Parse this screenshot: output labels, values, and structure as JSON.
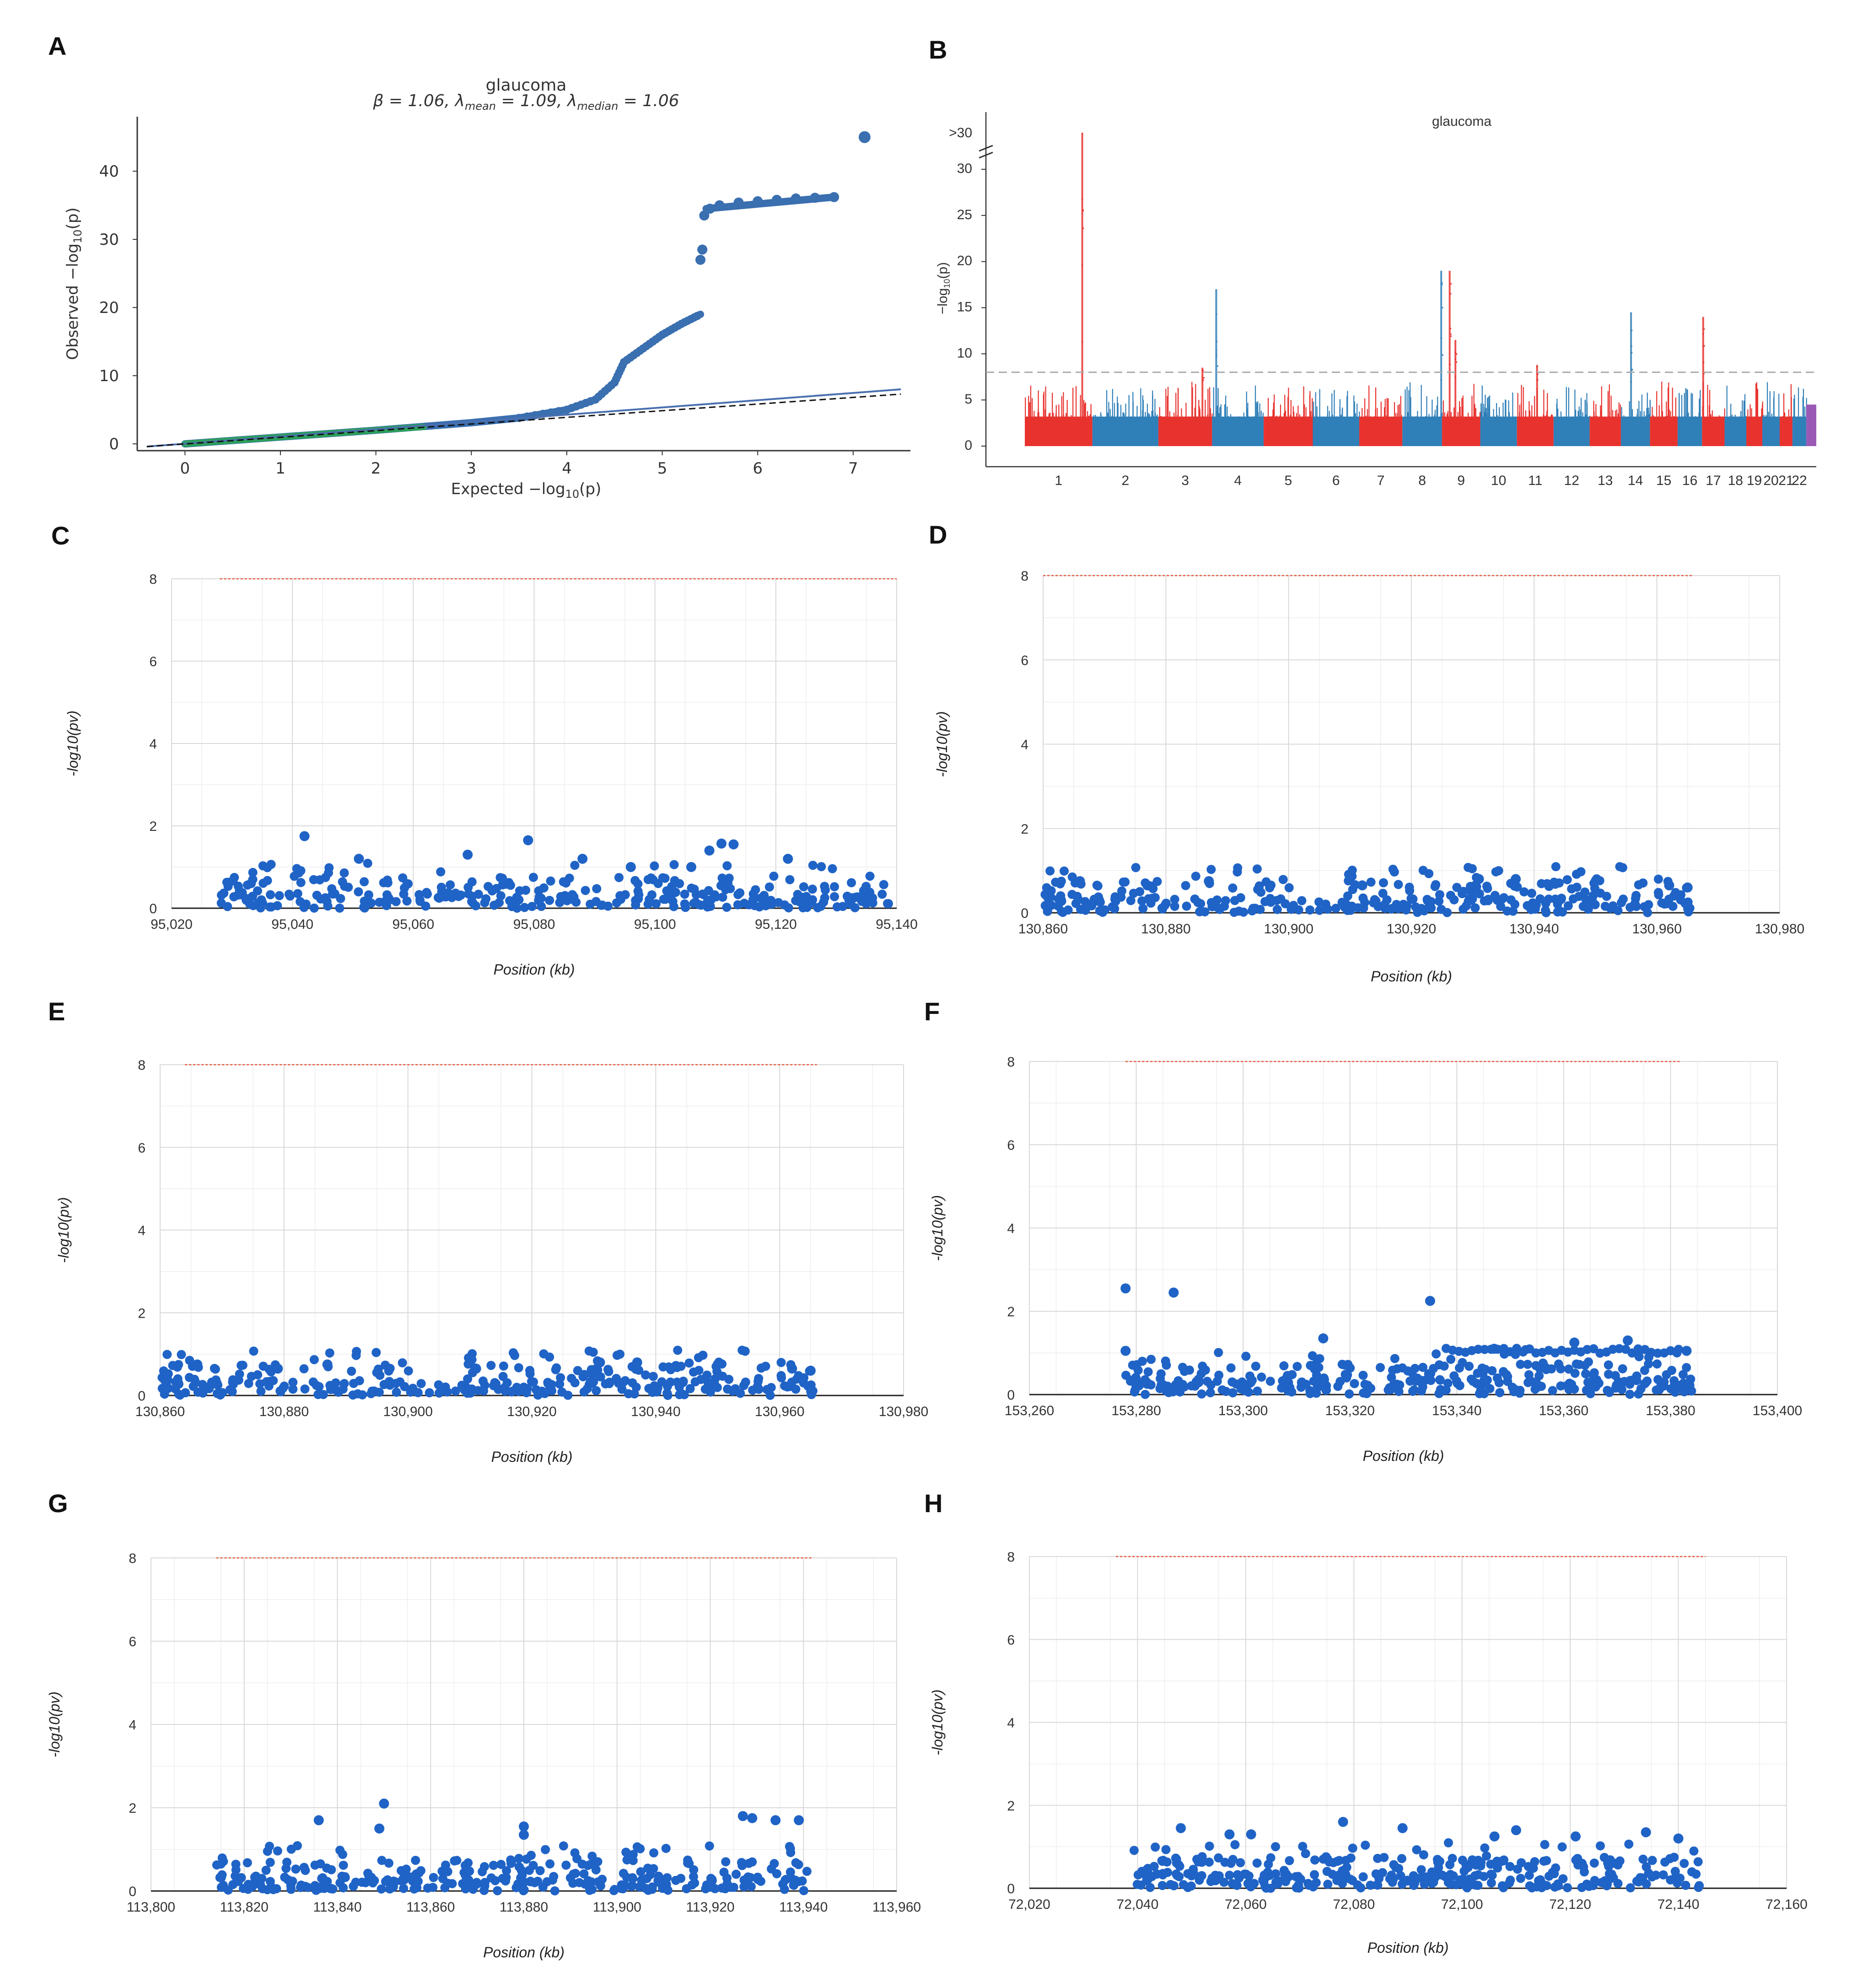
{
  "figure": {
    "panel_labels": [
      "A",
      "B",
      "C",
      "D",
      "E",
      "F",
      "G",
      "H"
    ]
  },
  "chart_data": [
    {
      "id": "A",
      "type": "scatter",
      "title": "glaucoma",
      "subtitle": "β = 1.06, λmean = 1.09, λmedian = 1.06",
      "subtitle_parts": {
        "beta": "β = 1.06, ",
        "lm": "λ",
        "mean": "mean",
        "lmv": " = 1.09, ",
        "lmed": "λ",
        "median": "median",
        "lmedv": " = 1.06"
      },
      "xlabel": "Expected −log10(p)",
      "xlabel_parts": {
        "main": "Expected −log",
        "sub": "10",
        "end": "(p)"
      },
      "ylabel": "Observed −log10(p)",
      "ylabel_parts": {
        "main": "Observed −log",
        "sub": "10",
        "end": "(p)"
      },
      "xlim": [
        -0.5,
        7.6
      ],
      "ylim": [
        -1,
        48
      ],
      "xticks": [
        0,
        1,
        2,
        3,
        4,
        5,
        6,
        7
      ],
      "yticks": [
        0,
        10,
        20,
        30,
        40
      ],
      "colors": {
        "points": "#3a6fb0",
        "low_points": "#2ca05a",
        "fit": "#4a6fb0",
        "expected": "#111111"
      },
      "series": [
        {
          "name": "observed",
          "curve": [
            [
              0,
              0
            ],
            [
              1,
              1
            ],
            [
              2,
              2
            ],
            [
              3,
              3.1
            ],
            [
              3.5,
              3.8
            ],
            [
              4,
              5
            ],
            [
              4.3,
              6.5
            ],
            [
              4.5,
              9
            ],
            [
              4.6,
              12
            ],
            [
              4.8,
              14
            ],
            [
              5,
              16
            ],
            [
              5.2,
              17.6
            ],
            [
              5.4,
              19
            ]
          ]
        },
        {
          "name": "upper_cluster",
          "points": [
            [
              5.4,
              27
            ],
            [
              5.42,
              28.5
            ],
            [
              5.44,
              33.5
            ],
            [
              5.5,
              34.5
            ],
            [
              5.6,
              35
            ],
            [
              5.8,
              35.4
            ],
            [
              6,
              35.6
            ],
            [
              6.2,
              35.8
            ],
            [
              6.4,
              36
            ],
            [
              6.6,
              36.1
            ],
            [
              6.8,
              36.2
            ]
          ]
        },
        {
          "name": "top_point",
          "points": [
            [
              7.12,
              45
            ]
          ]
        }
      ],
      "fit_line": [
        [
          -0.4,
          -0.4
        ],
        [
          7.5,
          8
        ]
      ],
      "expected_line": [
        [
          -0.4,
          -0.4
        ],
        [
          7.5,
          7.3
        ]
      ]
    },
    {
      "id": "B",
      "type": "manhattan",
      "title": "glaucoma",
      "ylabel": "−log10(p)",
      "ylabel_parts": {
        "main": "−log",
        "sub": "10",
        "end": "(p)"
      },
      "yticks": [
        "0",
        "5",
        "10",
        "15",
        "20",
        "25",
        "30"
      ],
      "ybreak_label": ">30",
      "threshold": 8,
      "chromosomes": [
        "1",
        "2",
        "3",
        "4",
        "5",
        "6",
        "7",
        "8",
        "9",
        "10",
        "11",
        "12",
        "13",
        "14",
        "15",
        "16",
        "17",
        "18",
        "19",
        "20",
        "21",
        "22"
      ],
      "chrom_sizes": [
        249,
        243,
        198,
        190,
        181,
        171,
        159,
        146,
        141,
        135,
        135,
        133,
        115,
        107,
        102,
        90,
        83,
        80,
        59,
        64,
        47,
        51
      ],
      "colors": {
        "odd": "#e8322e",
        "even": "#2f7fb8",
        "threshold": "#aaaaaa",
        "x": "#9b59b6"
      },
      "peaks": [
        {
          "chrom": 1,
          "frac": 0.85,
          "height": 34
        },
        {
          "chrom": 3,
          "frac": 0.82,
          "height": 8.5
        },
        {
          "chrom": 4,
          "frac": 0.08,
          "height": 17
        },
        {
          "chrom": 8,
          "frac": 0.98,
          "height": 19
        },
        {
          "chrom": 9,
          "frac": 0.2,
          "height": 19
        },
        {
          "chrom": 9,
          "frac": 0.35,
          "height": 11.5
        },
        {
          "chrom": 11,
          "frac": 0.55,
          "height": 8.8
        },
        {
          "chrom": 14,
          "frac": 0.35,
          "height": 14.5
        },
        {
          "chrom": 17,
          "frac": 0.05,
          "height": 14
        }
      ]
    },
    {
      "id": "C",
      "type": "scatter",
      "xlabel": "Position (kb)",
      "ylabel": "-log10(pv)",
      "xlim": [
        95020,
        95140
      ],
      "ylim": [
        0,
        8
      ],
      "xticks": [
        "95,020",
        "95,040",
        "95,060",
        "95,080",
        "95,100",
        "95,120",
        "95,140"
      ],
      "yticks": [
        "0",
        "2",
        "4",
        "6",
        "8"
      ],
      "threshold": 8,
      "threshold_range": [
        95028,
        95140
      ],
      "data_range": [
        95028,
        95139
      ],
      "highlights": [
        [
          95042,
          1.75
        ],
        [
          95079,
          1.65
        ],
        [
          95111,
          1.57
        ],
        [
          95113,
          1.55
        ],
        [
          95109,
          1.4
        ],
        [
          95069,
          1.3
        ],
        [
          95051,
          1.2
        ],
        [
          95088,
          1.2
        ],
        [
          95096,
          1.0
        ],
        [
          95122,
          1.2
        ],
        [
          95106,
          1.0
        ]
      ],
      "seed": 11
    },
    {
      "id": "D",
      "type": "scatter",
      "xlabel": "Position (kb)",
      "ylabel": "-log10(pv)",
      "xlim": [
        130860,
        130980
      ],
      "ylim": [
        0,
        8
      ],
      "xticks": [
        "130,860",
        "130,880",
        "130,900",
        "130,920",
        "130,940",
        "130,960",
        "130,980"
      ],
      "yticks": [
        "0",
        "2",
        "4",
        "6",
        "8"
      ],
      "threshold": 8,
      "threshold_range": [
        130860,
        130966
      ],
      "data_range": [
        130860,
        130966
      ],
      "highlights": [
        [
          130866,
          0.75
        ],
        [
          130877,
          0.65
        ],
        [
          130887,
          0.75
        ],
        [
          130912,
          0.65
        ],
        [
          130931,
          0.8
        ],
        [
          130937,
          0.8
        ],
        [
          130962,
          0.65
        ],
        [
          130965,
          0.6
        ]
      ],
      "seed": 23
    },
    {
      "id": "E",
      "type": "scatter",
      "xlabel": "Position (kb)",
      "ylabel": "-log10(pv)",
      "xlim": [
        130860,
        130980
      ],
      "ylim": [
        0,
        8
      ],
      "xticks": [
        "130,860",
        "130,880",
        "130,900",
        "130,920",
        "130,940",
        "130,960",
        "130,980"
      ],
      "yticks": [
        "0",
        "2",
        "4",
        "6",
        "8"
      ],
      "threshold": 8,
      "threshold_range": [
        130864,
        130966
      ],
      "data_range": [
        130860,
        130966
      ],
      "highlights": [
        [
          130866,
          0.75
        ],
        [
          130879,
          0.65
        ],
        [
          130887,
          0.75
        ],
        [
          130911,
          0.65
        ],
        [
          130931,
          0.8
        ],
        [
          130937,
          0.8
        ],
        [
          130962,
          0.65
        ],
        [
          130965,
          0.6
        ]
      ],
      "seed": 23
    },
    {
      "id": "F",
      "type": "scatter",
      "xlabel": "Position (kb)",
      "ylabel": "-log10(pv)",
      "xlim": [
        153260,
        153400
      ],
      "ylim": [
        0,
        8
      ],
      "xticks": [
        "153,260",
        "153,280",
        "153,300",
        "153,320",
        "153,340",
        "153,360",
        "153,380",
        "153,400"
      ],
      "yticks": [
        "0",
        "2",
        "4",
        "6",
        "8"
      ],
      "threshold": 8,
      "threshold_range": [
        153278,
        153382
      ],
      "data_range": [
        153278,
        153384
      ],
      "highlights": [
        [
          153278,
          2.55
        ],
        [
          153287,
          2.45
        ],
        [
          153335,
          2.25
        ],
        [
          153278,
          1.05
        ],
        [
          153315,
          1.35
        ],
        [
          153347,
          1.1
        ],
        [
          153362,
          1.25
        ],
        [
          153372,
          1.3
        ],
        [
          153383,
          1.05
        ]
      ],
      "band": {
        "from": 153338,
        "to": 153382,
        "y": 1.05
      },
      "seed": 37
    },
    {
      "id": "G",
      "type": "scatter",
      "xlabel": "Position (kb)",
      "ylabel": "-log10(pv)",
      "xlim": [
        113800,
        113960
      ],
      "ylim": [
        0,
        8
      ],
      "xticks": [
        "113,800",
        "113,820",
        "113,840",
        "113,860",
        "113,880",
        "113,900",
        "113,920",
        "113,940",
        "113,960"
      ],
      "yticks": [
        "0",
        "2",
        "4",
        "6",
        "8"
      ],
      "threshold": 8,
      "threshold_range": [
        113814,
        113942
      ],
      "data_range": [
        113814,
        113941
      ],
      "highlights": [
        [
          113850,
          2.1
        ],
        [
          113836,
          1.7
        ],
        [
          113849,
          1.5
        ],
        [
          113880,
          1.55
        ],
        [
          113927,
          1.8
        ],
        [
          113929,
          1.75
        ],
        [
          113934,
          1.7
        ],
        [
          113939,
          1.7
        ],
        [
          113880,
          1.35
        ]
      ],
      "seed": 53
    },
    {
      "id": "H",
      "type": "scatter",
      "xlabel": "Position (kb)",
      "ylabel": "-log10(pv)",
      "xlim": [
        72020,
        72160
      ],
      "ylim": [
        0,
        8
      ],
      "xticks": [
        "72,020",
        "72,040",
        "72,060",
        "72,080",
        "72,100",
        "72,120",
        "72,140",
        "72,160"
      ],
      "yticks": [
        "0",
        "2",
        "4",
        "6",
        "8"
      ],
      "threshold": 8,
      "threshold_range": [
        72036,
        72145
      ],
      "data_range": [
        72039,
        72145
      ],
      "highlights": [
        [
          72048,
          1.45
        ],
        [
          72078,
          1.6
        ],
        [
          72089,
          1.45
        ],
        [
          72057,
          1.3
        ],
        [
          72061,
          1.3
        ],
        [
          72106,
          1.25
        ],
        [
          72110,
          1.4
        ],
        [
          72121,
          1.25
        ],
        [
          72134,
          1.35
        ],
        [
          72140,
          1.2
        ]
      ],
      "seed": 71
    }
  ]
}
